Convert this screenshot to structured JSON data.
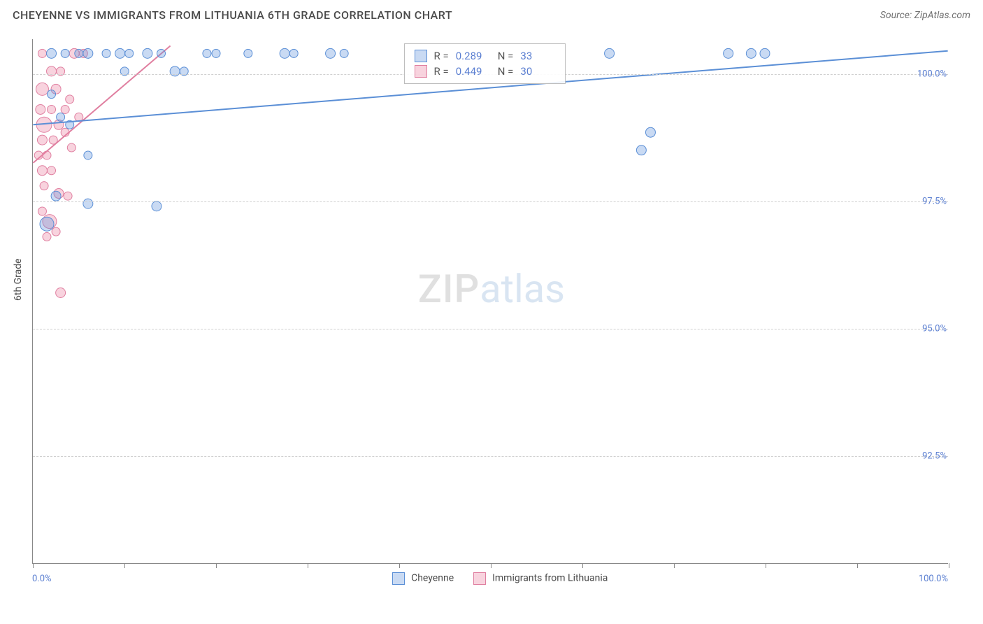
{
  "header": {
    "title": "CHEYENNE VS IMMIGRANTS FROM LITHUANIA 6TH GRADE CORRELATION CHART",
    "source": "Source: ZipAtlas.com"
  },
  "axes": {
    "y_title": "6th Grade",
    "x_min_label": "0.0%",
    "x_max_label": "100.0%",
    "xlim": [
      0,
      100
    ],
    "ylim": [
      90.39,
      100.68
    ],
    "y_ticks": [
      {
        "v": 92.5,
        "label": "92.5%"
      },
      {
        "v": 95.0,
        "label": "95.0%"
      },
      {
        "v": 97.5,
        "label": "97.5%"
      },
      {
        "v": 100.0,
        "label": "100.0%"
      }
    ],
    "x_ticks_pct": [
      0,
      10,
      20,
      30,
      40,
      50,
      60,
      70,
      80,
      90,
      100
    ],
    "grid_color": "#d0d0d0",
    "axis_color": "#888888"
  },
  "watermark": {
    "zip": "ZIP",
    "atlas": "atlas"
  },
  "series": {
    "blue": {
      "label": "Cheyenne",
      "fill": "rgba(99,148,222,0.35)",
      "stroke": "#5b8fd6",
      "R": "0.289",
      "N": "33",
      "trend": {
        "x1": 0,
        "y1": 99.0,
        "x2": 100,
        "y2": 100.45
      },
      "points": [
        {
          "x": 2.0,
          "y": 100.4,
          "r": 7
        },
        {
          "x": 3.5,
          "y": 100.4,
          "r": 6
        },
        {
          "x": 5.0,
          "y": 100.4,
          "r": 6
        },
        {
          "x": 6.0,
          "y": 100.4,
          "r": 7
        },
        {
          "x": 8.0,
          "y": 100.4,
          "r": 6
        },
        {
          "x": 9.5,
          "y": 100.4,
          "r": 7
        },
        {
          "x": 10.5,
          "y": 100.4,
          "r": 6
        },
        {
          "x": 12.5,
          "y": 100.4,
          "r": 7
        },
        {
          "x": 14.0,
          "y": 100.4,
          "r": 6
        },
        {
          "x": 19.0,
          "y": 100.4,
          "r": 6
        },
        {
          "x": 20.0,
          "y": 100.4,
          "r": 6
        },
        {
          "x": 23.5,
          "y": 100.4,
          "r": 6
        },
        {
          "x": 27.5,
          "y": 100.4,
          "r": 7
        },
        {
          "x": 28.5,
          "y": 100.4,
          "r": 6
        },
        {
          "x": 32.5,
          "y": 100.4,
          "r": 7
        },
        {
          "x": 34.0,
          "y": 100.4,
          "r": 6
        },
        {
          "x": 63.0,
          "y": 100.4,
          "r": 7
        },
        {
          "x": 76.0,
          "y": 100.4,
          "r": 7
        },
        {
          "x": 78.5,
          "y": 100.4,
          "r": 7
        },
        {
          "x": 80.0,
          "y": 100.4,
          "r": 7
        },
        {
          "x": 10.0,
          "y": 100.05,
          "r": 6
        },
        {
          "x": 15.5,
          "y": 100.05,
          "r": 7
        },
        {
          "x": 16.5,
          "y": 100.05,
          "r": 6
        },
        {
          "x": 3.0,
          "y": 99.15,
          "r": 6
        },
        {
          "x": 4.0,
          "y": 99.0,
          "r": 6
        },
        {
          "x": 67.5,
          "y": 98.85,
          "r": 7
        },
        {
          "x": 66.5,
          "y": 98.5,
          "r": 7
        },
        {
          "x": 6.0,
          "y": 98.4,
          "r": 6
        },
        {
          "x": 2.5,
          "y": 97.6,
          "r": 7
        },
        {
          "x": 6.0,
          "y": 97.45,
          "r": 7
        },
        {
          "x": 13.5,
          "y": 97.4,
          "r": 7
        },
        {
          "x": 1.5,
          "y": 97.05,
          "r": 10
        },
        {
          "x": 2.0,
          "y": 99.6,
          "r": 6
        }
      ]
    },
    "pink": {
      "label": "Immigrants from Lithuania",
      "fill": "rgba(235,130,160,0.35)",
      "stroke": "#e07fa0",
      "R": "0.449",
      "N": "30",
      "trend": {
        "x1": 0,
        "y1": 98.25,
        "x2": 15,
        "y2": 100.55
      },
      "points": [
        {
          "x": 1.0,
          "y": 100.4,
          "r": 6
        },
        {
          "x": 4.5,
          "y": 100.4,
          "r": 7
        },
        {
          "x": 5.5,
          "y": 100.4,
          "r": 6
        },
        {
          "x": 2.0,
          "y": 100.05,
          "r": 7
        },
        {
          "x": 3.0,
          "y": 100.05,
          "r": 6
        },
        {
          "x": 1.0,
          "y": 99.7,
          "r": 9
        },
        {
          "x": 2.5,
          "y": 99.7,
          "r": 7
        },
        {
          "x": 0.8,
          "y": 99.3,
          "r": 7
        },
        {
          "x": 2.0,
          "y": 99.3,
          "r": 6
        },
        {
          "x": 3.5,
          "y": 99.3,
          "r": 6
        },
        {
          "x": 1.2,
          "y": 99.0,
          "r": 11
        },
        {
          "x": 2.8,
          "y": 99.0,
          "r": 7
        },
        {
          "x": 1.0,
          "y": 98.7,
          "r": 7
        },
        {
          "x": 2.2,
          "y": 98.7,
          "r": 6
        },
        {
          "x": 0.6,
          "y": 98.4,
          "r": 6
        },
        {
          "x": 1.5,
          "y": 98.4,
          "r": 6
        },
        {
          "x": 1.0,
          "y": 98.1,
          "r": 7
        },
        {
          "x": 2.0,
          "y": 98.1,
          "r": 6
        },
        {
          "x": 1.2,
          "y": 97.8,
          "r": 6
        },
        {
          "x": 2.8,
          "y": 97.65,
          "r": 7
        },
        {
          "x": 3.8,
          "y": 97.6,
          "r": 6
        },
        {
          "x": 1.0,
          "y": 97.3,
          "r": 6
        },
        {
          "x": 1.8,
          "y": 97.1,
          "r": 10
        },
        {
          "x": 2.5,
          "y": 96.9,
          "r": 6
        },
        {
          "x": 1.5,
          "y": 96.8,
          "r": 6
        },
        {
          "x": 3.0,
          "y": 95.7,
          "r": 7
        },
        {
          "x": 4.0,
          "y": 99.5,
          "r": 6
        },
        {
          "x": 5.0,
          "y": 99.15,
          "r": 6
        },
        {
          "x": 3.5,
          "y": 98.85,
          "r": 6
        },
        {
          "x": 4.2,
          "y": 98.55,
          "r": 6
        }
      ]
    }
  },
  "legend": {
    "items": [
      {
        "key": "blue",
        "label": "Cheyenne"
      },
      {
        "key": "pink",
        "label": "Immigrants from Lithuania"
      }
    ]
  },
  "statbox": {
    "left_pct": 40.5,
    "top_pct": 0.8
  }
}
